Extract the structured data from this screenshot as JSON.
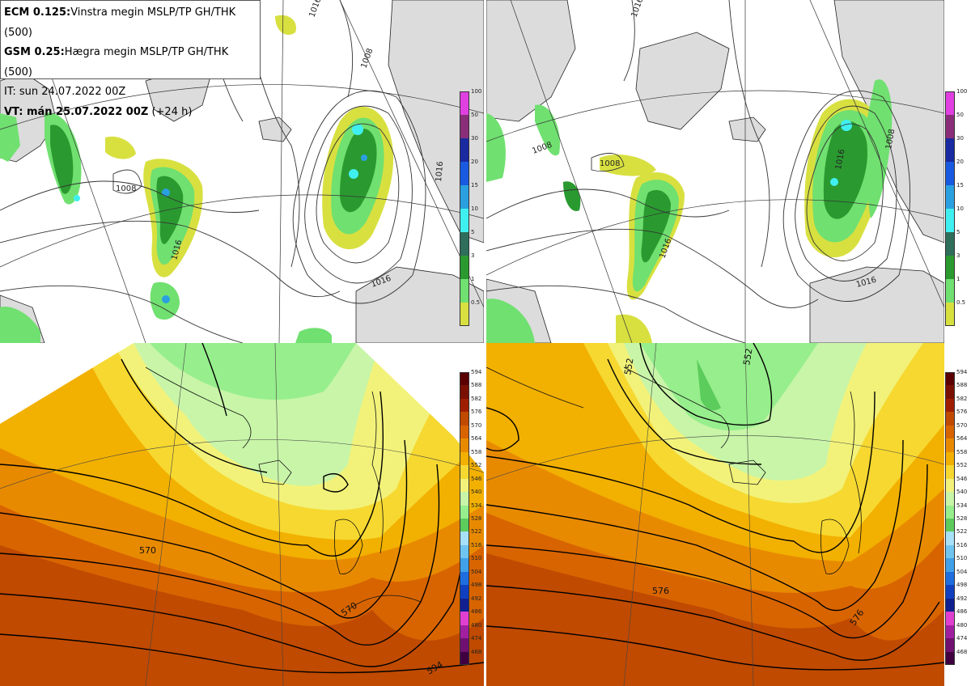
{
  "header": {
    "line1_bold": "ECM 0.125:",
    "line1_rest": "Vinstra megin MSLP/TP GH/THK (500)",
    "line2_bold": "GSM 0.25:",
    "line2_rest": "Hægra megin MSLP/TP GH/THK (500)",
    "line3": "IT: sun 24.07.2022 00Z",
    "line4_bold": "VT: mán 25.07.2022 00Z",
    "line4_rest": " (+24 h)"
  },
  "precip_scale": {
    "labels": [
      "100",
      "50",
      "30",
      "20",
      "15",
      "10",
      "5",
      "3",
      "1",
      "0.5"
    ],
    "colors": [
      "#e040e0",
      "#8a2e7a",
      "#1a2aa0",
      "#1a5ae0",
      "#2aa0e0",
      "#40f0f0",
      "#2e6e5a",
      "#2a9a30",
      "#70e070",
      "#d8e040"
    ]
  },
  "thickness_scale": {
    "labels": [
      "594",
      "588",
      "582",
      "576",
      "570",
      "564",
      "558",
      "552",
      "546",
      "540",
      "534",
      "528",
      "522",
      "516",
      "510",
      "504",
      "498",
      "492",
      "486",
      "480",
      "474",
      "468"
    ],
    "colors": [
      "#5a0000",
      "#7a1000",
      "#a01e00",
      "#c04a00",
      "#d86400",
      "#e88a00",
      "#f2b000",
      "#f6d830",
      "#f2f27a",
      "#c8f5a8",
      "#96ee8c",
      "#5ccc5c",
      "#a8e0f8",
      "#70c4f0",
      "#40a0e8",
      "#1e6ee0",
      "#1040c0",
      "#102090",
      "#e040d0",
      "#a020a0",
      "#701070",
      "#400040"
    ]
  },
  "contour_labels": {
    "tl": [
      "1016",
      "1008",
      "1008",
      "1016",
      "1016",
      "1016"
    ],
    "tr": [
      "1016",
      "1008",
      "1008",
      "1016",
      "1016",
      "1008",
      "1016"
    ],
    "bl": [
      "570",
      "570",
      "594"
    ],
    "br": [
      "552",
      "552",
      "576",
      "576"
    ]
  }
}
